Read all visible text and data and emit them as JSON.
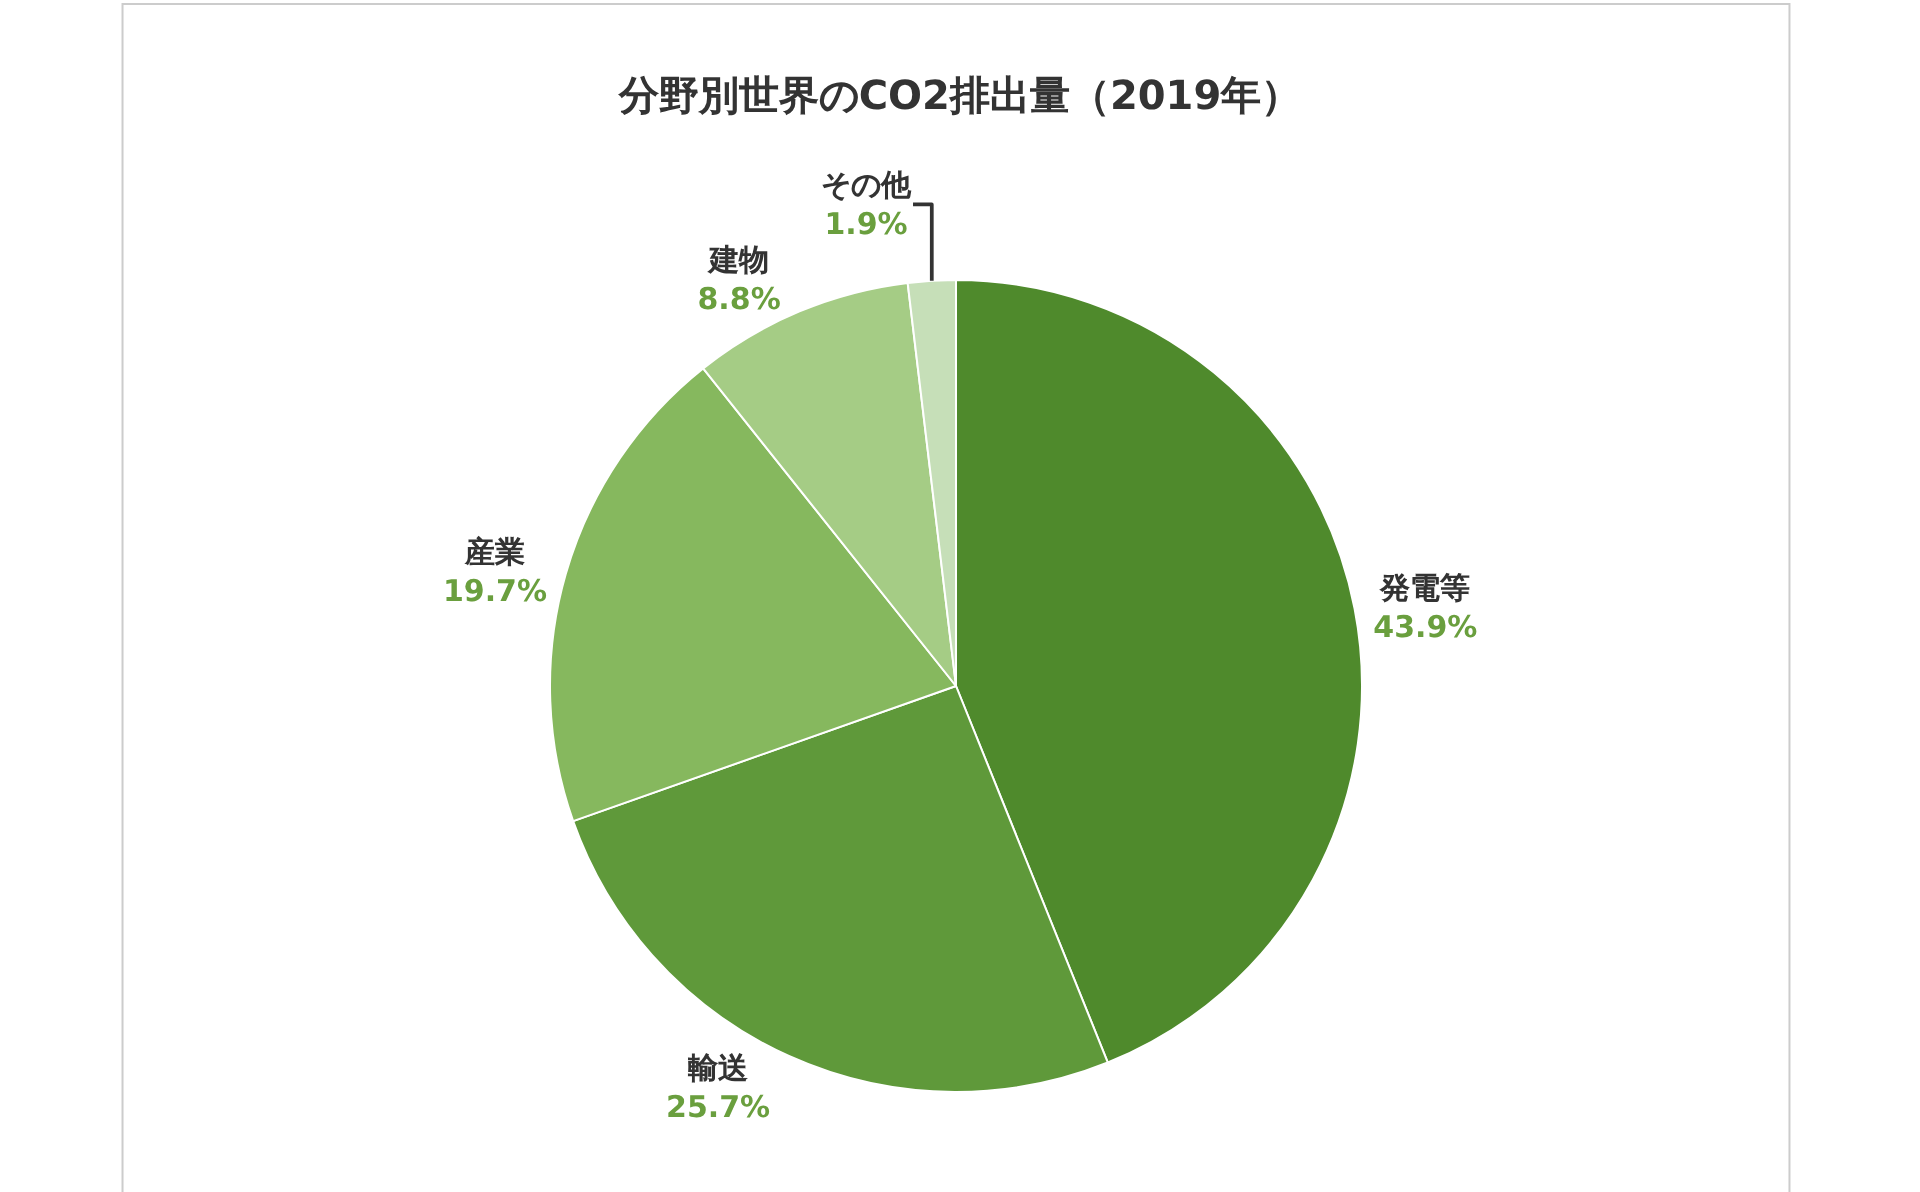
{
  "chart_data": {
    "type": "pie",
    "title": "分野別世界のCO2排出量（2019年）",
    "categories": [
      "発電等",
      "輸送",
      "産業",
      "建物",
      "その他"
    ],
    "values": [
      43.9,
      25.7,
      19.7,
      8.8,
      1.9
    ],
    "value_labels": [
      "43.9%",
      "25.7%",
      "19.7%",
      "8.8%",
      "1.9%"
    ],
    "colors": [
      "#4f8a2c",
      "#5f993a",
      "#86b85e",
      "#a5cc85",
      "#c6dfb8"
    ],
    "legend": false
  }
}
